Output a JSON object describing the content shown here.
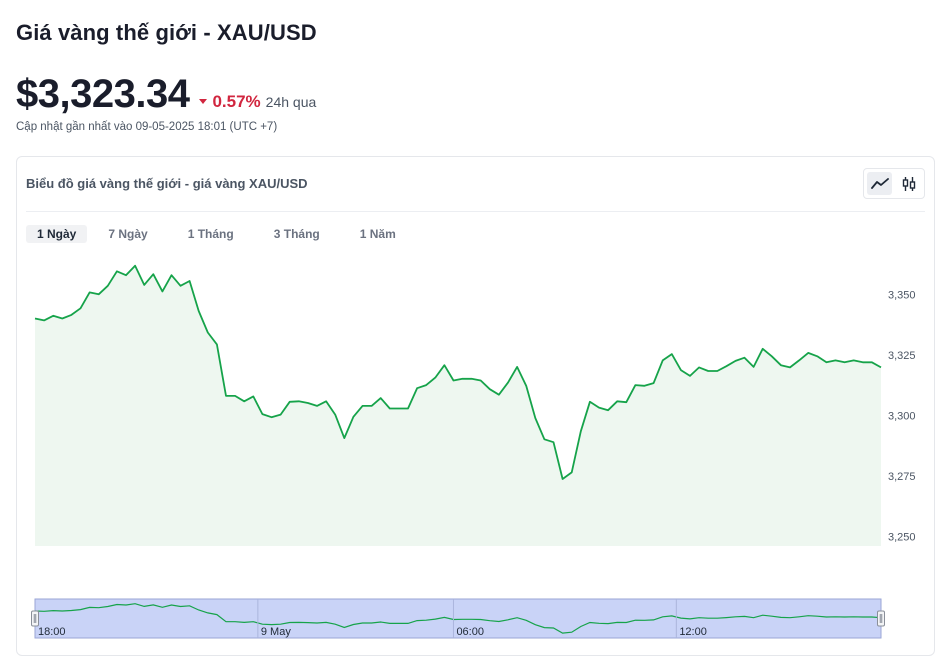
{
  "title": "Giá vàng thế giới - XAU/USD",
  "price": "$3,323.34",
  "change": {
    "percent": "0.57%",
    "period": "24h qua",
    "direction": "down",
    "color": "#d1263f"
  },
  "updated": "Cập nhật gần nhất vào 09-05-2025 18:01 (UTC +7)",
  "card": {
    "title": "Biểu đồ giá vàng thế giới - giá vàng XAU/USD",
    "chart_types": [
      {
        "name": "line",
        "icon": "line-chart-icon",
        "active": true
      },
      {
        "name": "candlestick",
        "icon": "candlestick-icon",
        "active": false
      }
    ],
    "tabs": [
      {
        "label": "1 Ngày",
        "active": true
      },
      {
        "label": "7 Ngày",
        "active": false
      },
      {
        "label": "1 Tháng",
        "active": false
      },
      {
        "label": "3 Tháng",
        "active": false
      },
      {
        "label": "1 Năm",
        "active": false
      }
    ]
  },
  "chart_data": {
    "type": "area",
    "line_color": "#16a34a",
    "fill_color": "#eef7f0",
    "y_ticks": [
      3250,
      3275,
      3300,
      3325,
      3350
    ],
    "y_tick_labels": [
      "3,250",
      "3,275",
      "3,300",
      "3,325",
      "3,350"
    ],
    "ylim": [
      3246,
      3365
    ],
    "x_range": [
      0,
      95
    ],
    "values": [
      3340.0,
      3339.2,
      3341.1,
      3340.0,
      3341.5,
      3344.2,
      3350.8,
      3350.0,
      3353.5,
      3359.5,
      3357.9,
      3361.8,
      3353.9,
      3358.3,
      3351.2,
      3357.9,
      3353.5,
      3355.5,
      3343.1,
      3334.2,
      3329.3,
      3308.0,
      3308.0,
      3305.8,
      3307.8,
      3300.5,
      3299.2,
      3300.3,
      3305.6,
      3305.8,
      3305.1,
      3303.9,
      3305.8,
      3300.3,
      3290.6,
      3299.4,
      3303.9,
      3303.9,
      3307.1,
      3302.8,
      3302.8,
      3302.8,
      3311.2,
      3312.5,
      3315.6,
      3320.7,
      3314.4,
      3315.1,
      3315.1,
      3314.4,
      3310.8,
      3308.5,
      3313.5,
      3320.0,
      3312.2,
      3298.9,
      3290.1,
      3288.9,
      3273.7,
      3276.4,
      3293.4,
      3305.6,
      3303.2,
      3302.1,
      3305.8,
      3305.4,
      3312.5,
      3312.2,
      3313.3,
      3322.7,
      3325.3,
      3318.7,
      3316.3,
      3319.8,
      3318.3,
      3318.3,
      3320.3,
      3322.5,
      3323.8,
      3320.0,
      3327.5,
      3324.4,
      3320.7,
      3319.8,
      3322.7,
      3325.8,
      3324.4,
      3321.9,
      3322.7,
      3321.9,
      3322.7,
      3321.9,
      3321.9,
      3319.8
    ],
    "navigator": {
      "x_labels": [
        "18:00",
        "9 May",
        "06:00",
        "12:00"
      ],
      "x_label_positions": [
        0,
        24.5,
        46,
        70.5
      ]
    }
  }
}
